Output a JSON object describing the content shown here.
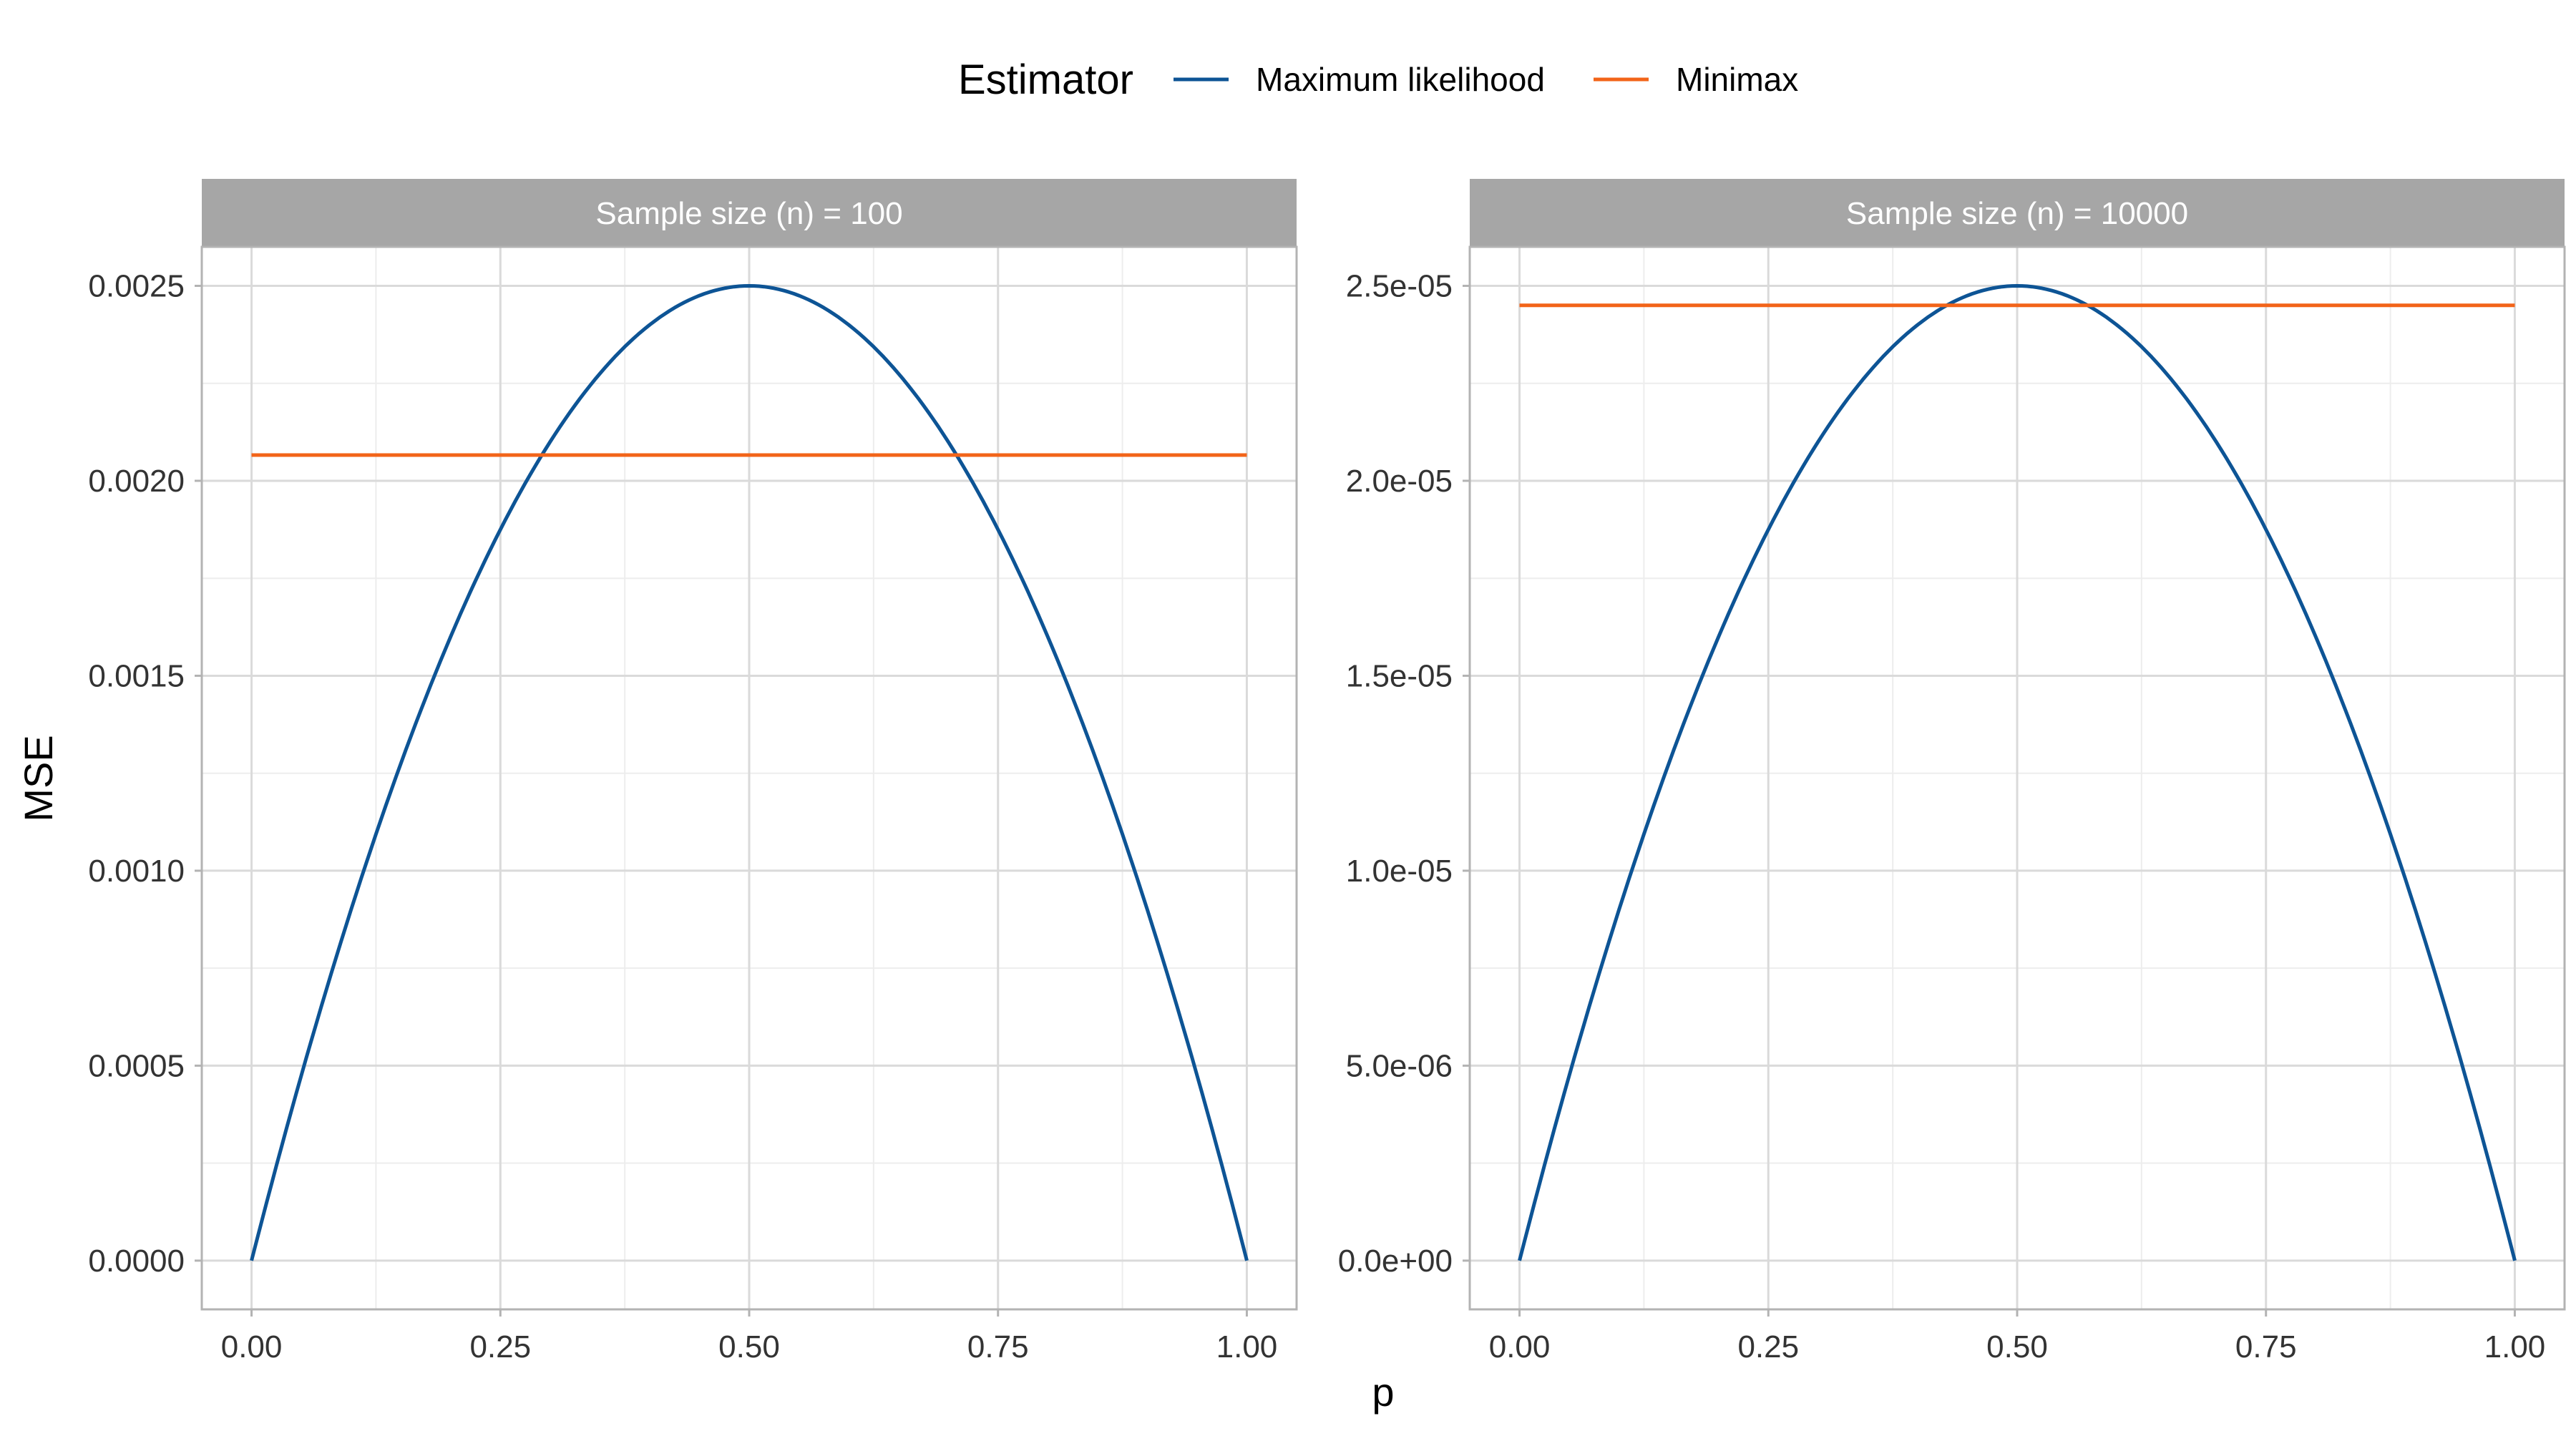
{
  "chart_data": {
    "type": "line",
    "xlabel": "p",
    "ylabel": "MSE",
    "legend": {
      "title": "Estimator",
      "placement": "top",
      "entries": [
        {
          "name": "Maximum likelihood",
          "color": "#0d5495"
        },
        {
          "name": "Minimax",
          "color": "#f26419"
        }
      ]
    },
    "x_ticks": [
      "0.00",
      "0.25",
      "0.50",
      "0.75",
      "1.00"
    ],
    "x_tick_values": [
      0,
      0.25,
      0.5,
      0.75,
      1
    ],
    "xlim": [
      0,
      1
    ],
    "grid": true,
    "panels": [
      {
        "strip": "Sample size (n) = 100",
        "n": 100,
        "ylim": [
          -0.000125,
          0.0026
        ],
        "y_ticks": [
          "0.0000",
          "0.0005",
          "0.0010",
          "0.0015",
          "0.0020",
          "0.0025"
        ],
        "y_tick_values": [
          0,
          0.0005,
          0.001,
          0.0015,
          0.002,
          0.0025
        ],
        "series": [
          {
            "name": "Maximum likelihood",
            "x": [
              0,
              0.1,
              0.2,
              0.3,
              0.4,
              0.5,
              0.6,
              0.7,
              0.8,
              0.9,
              1.0
            ],
            "values": [
              0,
              0.0009,
              0.0016,
              0.0021,
              0.0024,
              0.0025,
              0.0024,
              0.0021,
              0.0016,
              0.0009,
              0
            ]
          },
          {
            "name": "Minimax",
            "x": [
              0,
              1
            ],
            "values": [
              0.002066,
              0.002066
            ]
          }
        ]
      },
      {
        "strip": "Sample size (n) = 10000",
        "n": 10000,
        "ylim": [
          -1.25e-06,
          2.6e-05
        ],
        "y_ticks": [
          "0.0e+00",
          "5.0e-06",
          "1.0e-05",
          "1.5e-05",
          "2.0e-05",
          "2.5e-05"
        ],
        "y_tick_values": [
          0,
          5e-06,
          1e-05,
          1.5e-05,
          2e-05,
          2.5e-05
        ],
        "series": [
          {
            "name": "Maximum likelihood",
            "x": [
              0,
              0.1,
              0.2,
              0.3,
              0.4,
              0.5,
              0.6,
              0.7,
              0.8,
              0.9,
              1.0
            ],
            "values": [
              0,
              9e-06,
              1.6e-05,
              2.1e-05,
              2.4e-05,
              2.5e-05,
              2.4e-05,
              2.1e-05,
              1.6e-05,
              9e-06,
              0
            ]
          },
          {
            "name": "Minimax",
            "x": [
              0,
              1
            ],
            "values": [
              2.45e-05,
              2.45e-05
            ]
          }
        ]
      }
    ]
  }
}
